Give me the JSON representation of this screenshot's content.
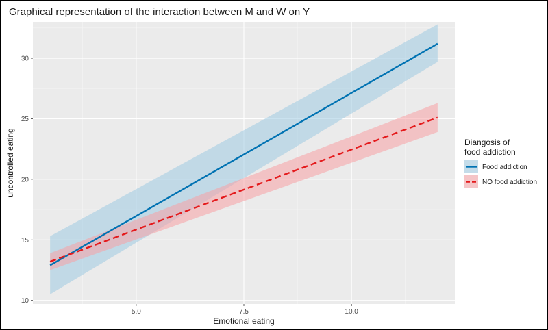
{
  "chart_data": {
    "type": "line",
    "title": "Graphical representation of the interaction between M and W on Y",
    "xlabel": "Emotional eating",
    "ylabel": "uncontrolled eating",
    "xlim": [
      2.6,
      12.4
    ],
    "ylim": [
      9.7,
      33.0
    ],
    "x_ticks": [
      5.0,
      7.5,
      10.0
    ],
    "x_tick_labels": [
      "5.0",
      "7.5",
      "10.0"
    ],
    "y_ticks": [
      10,
      15,
      20,
      25,
      30
    ],
    "y_tick_labels": [
      "10",
      "15",
      "20",
      "25",
      "30"
    ],
    "grid": true,
    "legend": {
      "title_lines": [
        "Diangosis of",
        "food addiction"
      ],
      "position": "right"
    },
    "series": [
      {
        "name": "Food addiction",
        "color": "#0072B2",
        "band_color": "#9ecae1",
        "dash": "solid",
        "x": [
          3.0,
          12.0
        ],
        "y": [
          12.9,
          31.2
        ],
        "lower": [
          10.5,
          29.7
        ],
        "upper": [
          15.3,
          32.8
        ]
      },
      {
        "name": "NO food addiction",
        "color": "#e41a1c",
        "band_color": "#f8a1a4",
        "dash": "dashed",
        "x": [
          3.0,
          12.0
        ],
        "y": [
          13.2,
          25.1
        ],
        "lower": [
          12.5,
          23.9
        ],
        "upper": [
          13.9,
          26.3
        ]
      }
    ]
  }
}
